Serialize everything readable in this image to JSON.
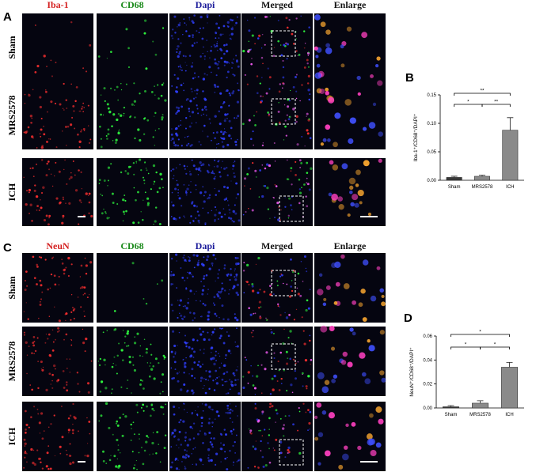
{
  "panels": [
    {
      "label": "A",
      "headers": [
        "Iba-1",
        "CD68",
        "Dapi",
        "Merged",
        "Enlarge"
      ],
      "rows": [
        "Sham",
        "MRS2578",
        "ICH"
      ]
    },
    {
      "label": "C",
      "headers": [
        "NeuN",
        "CD68",
        "Dapi",
        "Merged",
        "Enlarge"
      ],
      "rows": [
        "Sham",
        "MRS2578",
        "ICH"
      ]
    }
  ],
  "chart_data": [
    {
      "type": "bar",
      "panel_label": "B",
      "ylabel": "Iba-1⁺/CD68⁺/DAPI⁺",
      "categories": [
        "Sham",
        "MRS2578",
        "ICH"
      ],
      "values": [
        0.005,
        0.007,
        0.088
      ],
      "errors": [
        0.002,
        0.002,
        0.022
      ],
      "colors": [
        "#3a3a3a",
        "#8a8a8a",
        "#8a8a8a"
      ],
      "ylim": [
        0,
        0.15
      ],
      "yticks": [
        {
          "value": 0,
          "label": "0.00"
        },
        {
          "value": 0.05,
          "label": "0.05"
        },
        {
          "value": 0.1,
          "label": "0.10"
        },
        {
          "value": 0.15,
          "label": "0.15"
        }
      ],
      "annotations": [
        {
          "text": "*",
          "between": [
            0,
            1
          ]
        },
        {
          "text": "**",
          "between": [
            1,
            2
          ]
        },
        {
          "text": "**",
          "between": [
            0,
            2
          ]
        }
      ]
    },
    {
      "type": "bar",
      "panel_label": "D",
      "ylabel": "NeuN⁺/CD68⁺/DAPI⁺",
      "categories": [
        "Sham",
        "MRS2578",
        "ICH"
      ],
      "values": [
        0.001,
        0.004,
        0.034
      ],
      "errors": [
        0.001,
        0.002,
        0.004
      ],
      "colors": [
        "#3a3a3a",
        "#8a8a8a",
        "#8a8a8a"
      ],
      "ylim": [
        0,
        0.06
      ],
      "yticks": [
        {
          "value": 0,
          "label": "0.00"
        },
        {
          "value": 0.02,
          "label": "0.02"
        },
        {
          "value": 0.04,
          "label": "0.04"
        },
        {
          "value": 0.06,
          "label": "0.06"
        }
      ],
      "annotations": [
        {
          "text": "*",
          "between": [
            0,
            1
          ]
        },
        {
          "text": "*",
          "between": [
            1,
            2
          ]
        },
        {
          "text": "*",
          "between": [
            0,
            2
          ]
        }
      ]
    }
  ]
}
